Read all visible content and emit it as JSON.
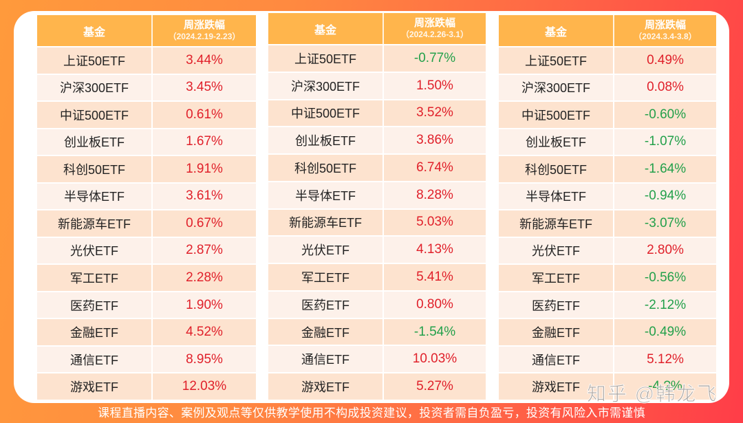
{
  "colors": {
    "header_bg": "#ffb54c",
    "row_odd": "#fde3cf",
    "row_even": "#fdf1ea",
    "positive": "#e0202a",
    "negative": "#22a04a",
    "bg_left": "#ff9a3c",
    "bg_right": "#ff3d48"
  },
  "tables": [
    {
      "header": {
        "name": "基金",
        "change_title": "周涨跌幅",
        "period": "（2024.2.19-2.23）"
      },
      "rows": [
        {
          "fund": "上证50ETF",
          "change": "3.44%",
          "trend": "up"
        },
        {
          "fund": "沪深300ETF",
          "change": "3.45%",
          "trend": "up"
        },
        {
          "fund": "中证500ETF",
          "change": "0.61%",
          "trend": "up"
        },
        {
          "fund": "创业板ETF",
          "change": "1.67%",
          "trend": "up"
        },
        {
          "fund": "科创50ETF",
          "change": "1.91%",
          "trend": "up"
        },
        {
          "fund": "半导体ETF",
          "change": "3.61%",
          "trend": "up"
        },
        {
          "fund": "新能源车ETF",
          "change": "0.67%",
          "trend": "up"
        },
        {
          "fund": "光伏ETF",
          "change": "2.87%",
          "trend": "up"
        },
        {
          "fund": "军工ETF",
          "change": "2.28%",
          "trend": "up"
        },
        {
          "fund": "医药ETF",
          "change": "1.90%",
          "trend": "up"
        },
        {
          "fund": "金融ETF",
          "change": "4.52%",
          "trend": "up"
        },
        {
          "fund": "通信ETF",
          "change": "8.95%",
          "trend": "up"
        },
        {
          "fund": "游戏ETF",
          "change": "12.03%",
          "trend": "up"
        }
      ]
    },
    {
      "header": {
        "name": "基金",
        "change_title": "周涨跌幅",
        "period": "（2024.2.26-3.1）"
      },
      "rows": [
        {
          "fund": "上证50ETF",
          "change": "-0.77%",
          "trend": "down"
        },
        {
          "fund": "沪深300ETF",
          "change": "1.50%",
          "trend": "up"
        },
        {
          "fund": "中证500ETF",
          "change": "3.52%",
          "trend": "up"
        },
        {
          "fund": "创业板ETF",
          "change": "3.86%",
          "trend": "up"
        },
        {
          "fund": "科创50ETF",
          "change": "6.74%",
          "trend": "up"
        },
        {
          "fund": "半导体ETF",
          "change": "8.28%",
          "trend": "up"
        },
        {
          "fund": "新能源车ETF",
          "change": "5.03%",
          "trend": "up"
        },
        {
          "fund": "光伏ETF",
          "change": "4.13%",
          "trend": "up"
        },
        {
          "fund": "军工ETF",
          "change": "5.41%",
          "trend": "up"
        },
        {
          "fund": "医药ETF",
          "change": "0.80%",
          "trend": "up"
        },
        {
          "fund": "金融ETF",
          "change": "-1.54%",
          "trend": "down"
        },
        {
          "fund": "通信ETF",
          "change": "10.03%",
          "trend": "up"
        },
        {
          "fund": "游戏ETF",
          "change": "5.27%",
          "trend": "up"
        }
      ]
    },
    {
      "header": {
        "name": "基金",
        "change_title": "周涨跌幅",
        "period": "（2024.3.4-3.8）"
      },
      "rows": [
        {
          "fund": "上证50ETF",
          "change": "0.49%",
          "trend": "up"
        },
        {
          "fund": "沪深300ETF",
          "change": "0.08%",
          "trend": "up"
        },
        {
          "fund": "中证500ETF",
          "change": "-0.60%",
          "trend": "down"
        },
        {
          "fund": "创业板ETF",
          "change": "-1.07%",
          "trend": "down"
        },
        {
          "fund": "科创50ETF",
          "change": "-1.64%",
          "trend": "down"
        },
        {
          "fund": "半导体ETF",
          "change": "-0.94%",
          "trend": "down"
        },
        {
          "fund": "新能源车ETF",
          "change": "-3.07%",
          "trend": "down"
        },
        {
          "fund": "光伏ETF",
          "change": "2.80%",
          "trend": "up"
        },
        {
          "fund": "军工ETF",
          "change": "-0.56%",
          "trend": "down"
        },
        {
          "fund": "医药ETF",
          "change": "-2.12%",
          "trend": "down"
        },
        {
          "fund": "金融ETF",
          "change": "-0.49%",
          "trend": "down"
        },
        {
          "fund": "通信ETF",
          "change": "5.12%",
          "trend": "up"
        },
        {
          "fund": "游戏ETF",
          "change": "-4.?%",
          "trend": "down"
        }
      ]
    }
  ],
  "disclaimer": "课程直播内容、案例及观点等仅供教学使用不构成投资建议，投资者需自负盈亏，投资有风险入市需谨慎",
  "watermark": "知乎 @韩龙飞"
}
